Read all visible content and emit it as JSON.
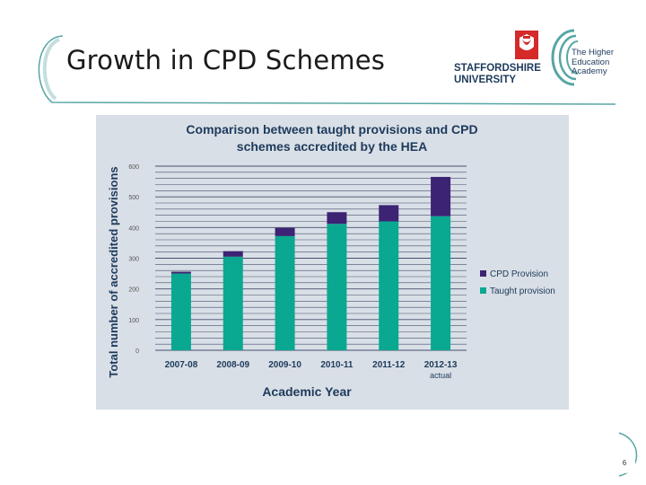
{
  "slide": {
    "title": "Growth in CPD Schemes",
    "page_number": "6"
  },
  "logos": {
    "staffordshire_line1": "STAFFORDSHIRE",
    "staffordshire_line2": "UNIVERSITY",
    "hea_line1": "The Higher",
    "hea_line2": "Education",
    "hea_line3": "Academy"
  },
  "colors": {
    "taught": "#0aa890",
    "cpd": "#3c2373",
    "title_text": "#1d3a5c",
    "panel_bg": "#d9dfe6",
    "gridline": "#2a3658",
    "accent_teal": "#57a6a4"
  },
  "chart_data": {
    "type": "bar",
    "stacked": true,
    "title_line1": "Comparison between taught provisions and CPD",
    "title_line2": "schemes accredited by the HEA",
    "xlabel": "Academic Year",
    "ylabel": "Total number of accredited provisions",
    "categories": [
      "2007-08",
      "2008-09",
      "2009-10",
      "2010-11",
      "2011-12",
      "2012-13"
    ],
    "category_sublabels": [
      "",
      "",
      "",
      "",
      "",
      "actual"
    ],
    "series": [
      {
        "name": "Taught provision",
        "values": [
          250,
          305,
          372,
          412,
          420,
          437
        ]
      },
      {
        "name": "CPD Provision",
        "values": [
          6,
          18,
          27,
          38,
          53,
          128
        ]
      }
    ],
    "ylim": [
      0,
      600
    ],
    "yticks": [
      0,
      100,
      200,
      300,
      400,
      500,
      600
    ],
    "legend": [
      "CPD Provision",
      "Taught provision"
    ],
    "legend_position": "right",
    "grid": true
  }
}
